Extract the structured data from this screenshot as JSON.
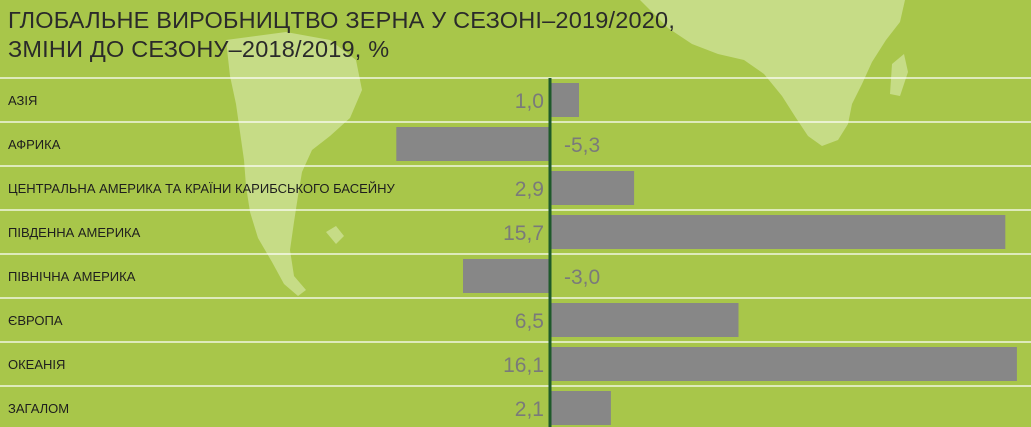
{
  "title_lines": [
    "ГЛОБАЛЬНЕ ВИРОБНИЦТВО ЗЕРНА У СЕЗОНІ–2019/2020,",
    "ЗМІНИ ДО СЕЗОНУ–2018/2019, %"
  ],
  "chart_data": {
    "type": "bar",
    "orientation": "horizontal",
    "title": "ГЛОБАЛЬНЕ ВИРОБНИЦТВО ЗЕРНА У СЕЗОНІ–2019/2020, ЗМІНИ ДО СЕЗОНУ–2018/2019, %",
    "categories": [
      "АЗІЯ",
      "АФРИКА",
      "ЦЕНТРАЛЬНА АМЕРИКА ТА КРАЇНИ КАРИБСЬКОГО БАСЕЙНУ",
      "ПІВДЕННА АМЕРИКА",
      "ПІВНІЧНА АМЕРИКА",
      "ЄВРОПА",
      "ОКЕАНІЯ",
      "ЗАГАЛОМ"
    ],
    "values": [
      1.0,
      -5.3,
      2.9,
      15.7,
      -3.0,
      6.5,
      16.1,
      2.1
    ],
    "value_labels": [
      "1,0",
      "-5,3",
      "2,9",
      "15,7",
      "-3,0",
      "6,5",
      "16,1",
      "2,1"
    ],
    "xlim": [
      -5.3,
      16.1
    ],
    "grid": false,
    "legend": "none"
  },
  "colors": {
    "background": "#a8c64a",
    "map": "#c6dc86",
    "bar": "#878787",
    "axis": "#1e5a2a",
    "value_text": "#7a7a7a",
    "label_text": "#1e1e1e",
    "row_divider": "#ffffff"
  }
}
